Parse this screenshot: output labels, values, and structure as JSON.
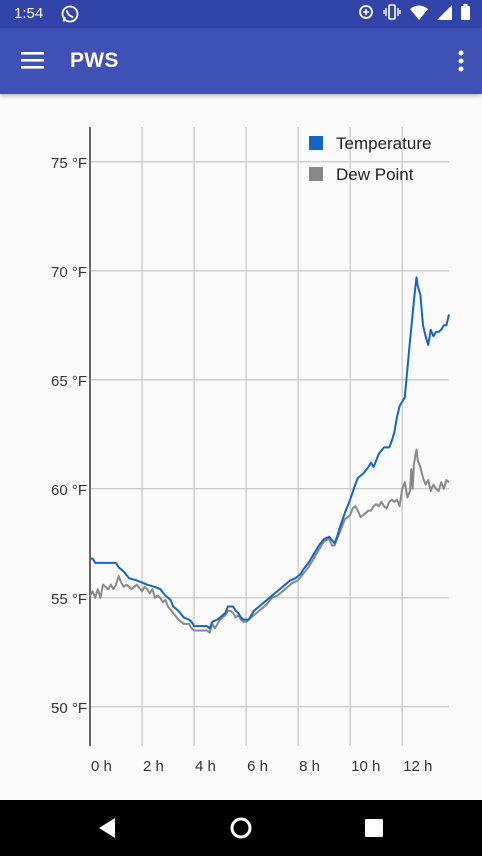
{
  "status_bar": {
    "time": "1:54",
    "left_icons": [
      "whatsapp-icon"
    ],
    "right_icons": [
      "data-saver-icon",
      "vibrate-icon",
      "wifi-icon",
      "signal-icon",
      "battery-icon"
    ]
  },
  "app_bar": {
    "title": "PWS",
    "menu_icon": "hamburger-menu-icon",
    "overflow_icon": "more-vert-icon"
  },
  "colors": {
    "app_bar": "#3f51b5",
    "status_bar": "#3344a8",
    "temperature": "#1565c0",
    "dew_point": "#888888"
  },
  "chart_data": {
    "type": "line",
    "title": "",
    "xlabel": "",
    "ylabel": "",
    "xlim": [
      0,
      13.8
    ],
    "ylim": [
      48.2,
      76.6
    ],
    "grid": true,
    "legend_position": "top-right",
    "x_ticks": [
      0,
      2,
      4,
      6,
      8,
      10,
      12
    ],
    "x_tick_labels": [
      "0 h",
      "2 h",
      "4 h",
      "6 h",
      "8 h",
      "10 h",
      "12 h"
    ],
    "y_ticks": [
      50,
      55,
      60,
      65,
      70,
      75
    ],
    "y_tick_labels": [
      "50 °F",
      "55 °F",
      "60 °F",
      "65 °F",
      "70 °F",
      "75 °F"
    ],
    "series": [
      {
        "name": "Temperature",
        "color": "#1565c0",
        "points": [
          [
            0.0,
            56.8
          ],
          [
            0.1,
            56.8
          ],
          [
            0.2,
            56.6
          ],
          [
            0.6,
            56.6
          ],
          [
            0.8,
            56.6
          ],
          [
            1.0,
            56.6
          ],
          [
            1.1,
            56.4
          ],
          [
            1.3,
            56.2
          ],
          [
            1.5,
            55.9
          ],
          [
            1.8,
            55.8
          ],
          [
            2.2,
            55.6
          ],
          [
            2.5,
            55.5
          ],
          [
            2.7,
            55.4
          ],
          [
            2.9,
            55.1
          ],
          [
            3.1,
            54.9
          ],
          [
            3.2,
            54.6
          ],
          [
            3.4,
            54.4
          ],
          [
            3.6,
            54.1
          ],
          [
            3.8,
            54.0
          ],
          [
            3.9,
            53.9
          ],
          [
            4.0,
            53.7
          ],
          [
            4.3,
            53.7
          ],
          [
            4.5,
            53.7
          ],
          [
            4.6,
            53.6
          ],
          [
            4.7,
            53.9
          ],
          [
            4.9,
            54.0
          ],
          [
            5.0,
            54.1
          ],
          [
            5.2,
            54.3
          ],
          [
            5.3,
            54.6
          ],
          [
            5.5,
            54.6
          ],
          [
            5.6,
            54.4
          ],
          [
            5.7,
            54.3
          ],
          [
            5.8,
            54.1
          ],
          [
            5.9,
            54.0
          ],
          [
            6.0,
            54.0
          ],
          [
            6.1,
            54.0
          ],
          [
            6.2,
            54.2
          ],
          [
            6.3,
            54.4
          ],
          [
            6.5,
            54.6
          ],
          [
            6.7,
            54.8
          ],
          [
            6.9,
            55.0
          ],
          [
            7.1,
            55.2
          ],
          [
            7.3,
            55.4
          ],
          [
            7.5,
            55.6
          ],
          [
            7.7,
            55.8
          ],
          [
            7.9,
            55.9
          ],
          [
            8.0,
            56.0
          ],
          [
            8.1,
            56.1
          ],
          [
            8.2,
            56.3
          ],
          [
            8.4,
            56.6
          ],
          [
            8.6,
            57.0
          ],
          [
            8.8,
            57.4
          ],
          [
            9.0,
            57.7
          ],
          [
            9.2,
            57.8
          ],
          [
            9.4,
            57.5
          ],
          [
            9.5,
            57.8
          ],
          [
            9.6,
            58.2
          ],
          [
            9.8,
            58.9
          ],
          [
            10.0,
            59.5
          ],
          [
            10.2,
            60.2
          ],
          [
            10.3,
            60.5
          ],
          [
            10.5,
            60.7
          ],
          [
            10.7,
            61.0
          ],
          [
            10.8,
            61.2
          ],
          [
            10.9,
            61.0
          ],
          [
            11.0,
            61.3
          ],
          [
            11.1,
            61.6
          ],
          [
            11.3,
            61.9
          ],
          [
            11.5,
            61.9
          ],
          [
            11.6,
            62.2
          ],
          [
            11.7,
            62.6
          ],
          [
            11.8,
            63.3
          ],
          [
            11.9,
            63.8
          ],
          [
            12.0,
            64.0
          ],
          [
            12.1,
            64.2
          ],
          [
            12.2,
            65.5
          ],
          [
            12.3,
            66.8
          ],
          [
            12.4,
            68.0
          ],
          [
            12.5,
            69.2
          ],
          [
            12.55,
            69.7
          ],
          [
            12.6,
            69.3
          ],
          [
            12.7,
            68.9
          ],
          [
            12.8,
            67.5
          ],
          [
            12.9,
            67.0
          ],
          [
            13.0,
            66.6
          ],
          [
            13.1,
            67.3
          ],
          [
            13.2,
            67.0
          ],
          [
            13.3,
            67.2
          ],
          [
            13.4,
            67.2
          ],
          [
            13.5,
            67.3
          ],
          [
            13.6,
            67.5
          ],
          [
            13.7,
            67.5
          ],
          [
            13.8,
            68.0
          ]
        ]
      },
      {
        "name": "Dew Point",
        "color": "#888888",
        "points": [
          [
            0.0,
            55.1
          ],
          [
            0.1,
            55.3
          ],
          [
            0.2,
            55.0
          ],
          [
            0.3,
            55.4
          ],
          [
            0.4,
            55.0
          ],
          [
            0.5,
            55.6
          ],
          [
            0.6,
            55.5
          ],
          [
            0.7,
            55.4
          ],
          [
            0.8,
            55.6
          ],
          [
            0.9,
            55.4
          ],
          [
            1.0,
            55.6
          ],
          [
            1.1,
            56.0
          ],
          [
            1.2,
            55.7
          ],
          [
            1.3,
            55.5
          ],
          [
            1.4,
            55.6
          ],
          [
            1.5,
            55.5
          ],
          [
            1.6,
            55.4
          ],
          [
            1.7,
            55.5
          ],
          [
            1.8,
            55.6
          ],
          [
            2.0,
            55.3
          ],
          [
            2.1,
            55.5
          ],
          [
            2.2,
            55.4
          ],
          [
            2.3,
            55.2
          ],
          [
            2.4,
            55.4
          ],
          [
            2.5,
            55.0
          ],
          [
            2.6,
            55.1
          ],
          [
            2.7,
            55.0
          ],
          [
            2.8,
            54.8
          ],
          [
            2.9,
            54.9
          ],
          [
            3.0,
            54.6
          ],
          [
            3.2,
            54.3
          ],
          [
            3.4,
            54.0
          ],
          [
            3.6,
            53.8
          ],
          [
            3.8,
            53.8
          ],
          [
            3.9,
            53.6
          ],
          [
            4.0,
            53.5
          ],
          [
            4.2,
            53.5
          ],
          [
            4.5,
            53.5
          ],
          [
            4.6,
            53.4
          ],
          [
            4.7,
            53.8
          ],
          [
            4.8,
            53.6
          ],
          [
            4.9,
            53.8
          ],
          [
            5.0,
            54.0
          ],
          [
            5.2,
            54.2
          ],
          [
            5.3,
            54.4
          ],
          [
            5.4,
            54.4
          ],
          [
            5.5,
            54.3
          ],
          [
            5.6,
            54.1
          ],
          [
            5.7,
            54.2
          ],
          [
            5.8,
            54.0
          ],
          [
            5.9,
            53.9
          ],
          [
            6.0,
            53.9
          ],
          [
            6.2,
            54.1
          ],
          [
            6.4,
            54.3
          ],
          [
            6.6,
            54.5
          ],
          [
            6.8,
            54.7
          ],
          [
            7.0,
            55.0
          ],
          [
            7.2,
            55.1
          ],
          [
            7.4,
            55.3
          ],
          [
            7.6,
            55.5
          ],
          [
            7.8,
            55.7
          ],
          [
            8.0,
            55.8
          ],
          [
            8.2,
            56.1
          ],
          [
            8.4,
            56.4
          ],
          [
            8.6,
            56.8
          ],
          [
            8.8,
            57.2
          ],
          [
            9.0,
            57.6
          ],
          [
            9.2,
            57.7
          ],
          [
            9.3,
            57.4
          ],
          [
            9.4,
            57.4
          ],
          [
            9.5,
            57.7
          ],
          [
            9.6,
            58.0
          ],
          [
            9.8,
            58.6
          ],
          [
            10.0,
            58.8
          ],
          [
            10.1,
            59.1
          ],
          [
            10.2,
            59.2
          ],
          [
            10.3,
            59.0
          ],
          [
            10.4,
            58.7
          ],
          [
            10.5,
            58.8
          ],
          [
            10.7,
            59.0
          ],
          [
            10.8,
            59.0
          ],
          [
            10.9,
            59.2
          ],
          [
            11.0,
            59.3
          ],
          [
            11.1,
            59.2
          ],
          [
            11.2,
            59.4
          ],
          [
            11.3,
            59.2
          ],
          [
            11.4,
            59.1
          ],
          [
            11.5,
            59.4
          ],
          [
            11.6,
            59.5
          ],
          [
            11.7,
            59.4
          ],
          [
            11.8,
            59.5
          ],
          [
            11.9,
            59.2
          ],
          [
            12.0,
            60.0
          ],
          [
            12.1,
            60.3
          ],
          [
            12.2,
            59.6
          ],
          [
            12.3,
            59.9
          ],
          [
            12.35,
            60.9
          ],
          [
            12.4,
            60.0
          ],
          [
            12.45,
            61.1
          ],
          [
            12.5,
            61.5
          ],
          [
            12.55,
            61.8
          ],
          [
            12.6,
            61.3
          ],
          [
            12.7,
            61.0
          ],
          [
            12.8,
            60.5
          ],
          [
            12.9,
            60.2
          ],
          [
            13.0,
            60.4
          ],
          [
            13.1,
            59.9
          ],
          [
            13.2,
            60.2
          ],
          [
            13.3,
            60.0
          ],
          [
            13.4,
            59.9
          ],
          [
            13.5,
            60.3
          ],
          [
            13.6,
            60.0
          ],
          [
            13.7,
            60.4
          ],
          [
            13.8,
            60.3
          ]
        ]
      }
    ]
  },
  "nav_bar": {
    "back_icon": "back-triangle-icon",
    "home_icon": "home-circle-icon",
    "recents_icon": "recents-square-icon"
  }
}
